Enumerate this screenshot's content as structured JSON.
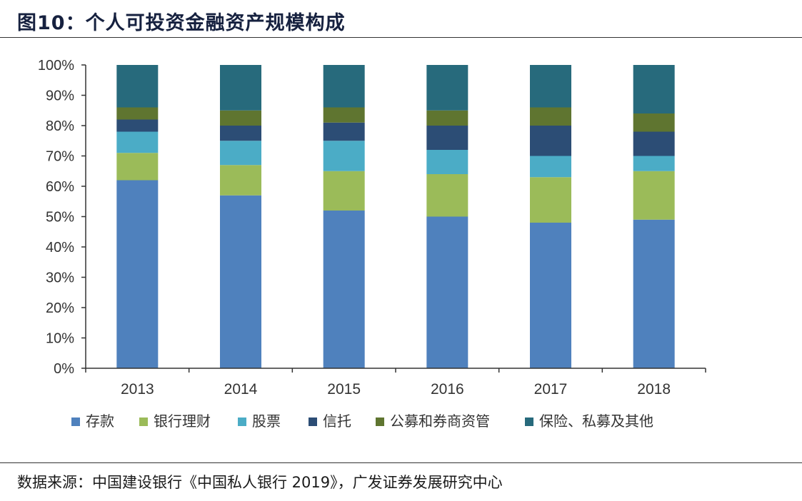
{
  "header": {
    "title": "图10：个人可投资金融资产规模构成"
  },
  "footer": {
    "source": "数据来源：中国建设银行《中国私人银行 2019》，广发证券发展研究中心"
  },
  "chart_data": {
    "type": "bar",
    "stacked": true,
    "categories": [
      "2013",
      "2014",
      "2015",
      "2016",
      "2017",
      "2018"
    ],
    "series": [
      {
        "name": "存款",
        "color": "#4f81bd",
        "values": [
          62,
          57,
          52,
          50,
          48,
          49
        ]
      },
      {
        "name": "银行理财",
        "color": "#9bbb59",
        "values": [
          9,
          10,
          13,
          14,
          15,
          16
        ]
      },
      {
        "name": "股票",
        "color": "#4bacc6",
        "values": [
          7,
          8,
          10,
          8,
          7,
          5
        ]
      },
      {
        "name": "信托",
        "color": "#2c4d75",
        "values": [
          4,
          5,
          6,
          8,
          10,
          8
        ]
      },
      {
        "name": "公募和券商资管",
        "color": "#5f7530",
        "values": [
          4,
          5,
          5,
          5,
          6,
          6
        ]
      },
      {
        "name": "保险、私募及其他",
        "color": "#276a7c",
        "values": [
          14,
          15,
          14,
          15,
          14,
          16
        ]
      }
    ],
    "ylim": [
      0,
      100
    ],
    "y_ticks": [
      "0%",
      "10%",
      "20%",
      "30%",
      "40%",
      "50%",
      "60%",
      "70%",
      "80%",
      "90%",
      "100%"
    ],
    "grid": false,
    "legend_position": "bottom"
  }
}
